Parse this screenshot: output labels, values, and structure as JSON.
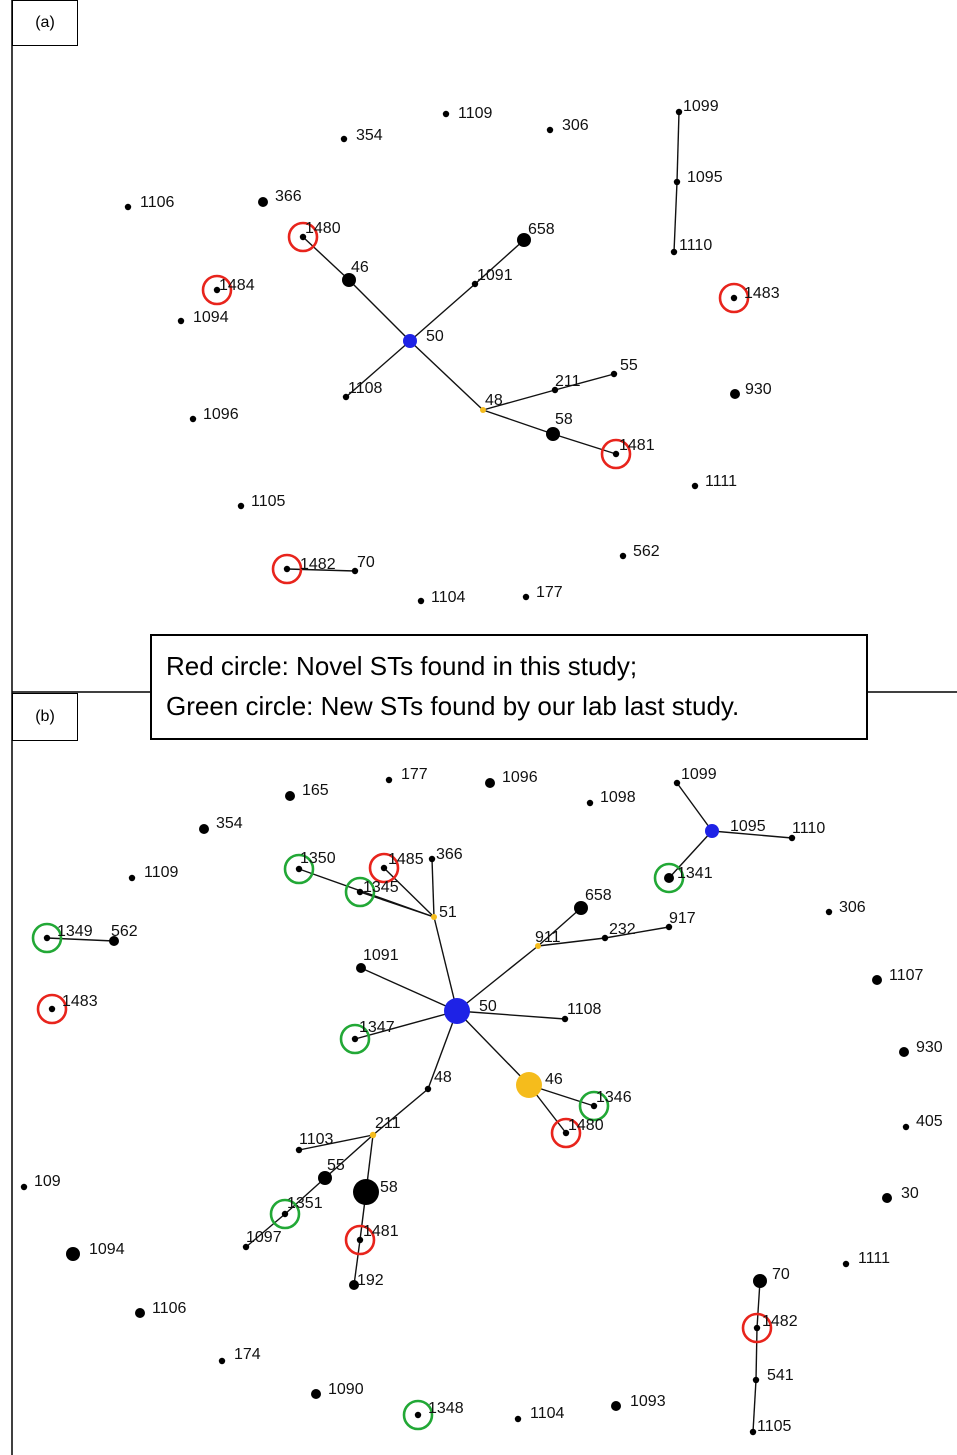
{
  "colors": {
    "founder_blue": "#1e22e6",
    "subfounder_yellow": "#f5bc1c",
    "node_black": "#000000",
    "novel_red": "#e8241c",
    "new_green": "#22a836"
  },
  "legend": {
    "red": "Red circle: Novel STs found in this study;",
    "green": "Green circle: New STs found by our lab last study."
  },
  "panels": [
    {
      "id": "a",
      "label": "(a)",
      "nodes": [
        {
          "label": "1109",
          "kind": "black",
          "size": "sm"
        },
        {
          "label": "354",
          "kind": "black",
          "size": "sm"
        },
        {
          "label": "306",
          "kind": "black",
          "size": "sm"
        },
        {
          "label": "1099",
          "kind": "black",
          "size": "sm"
        },
        {
          "label": "1095",
          "kind": "black",
          "size": "sm"
        },
        {
          "label": "1110",
          "kind": "black",
          "size": "sm"
        },
        {
          "label": "1106",
          "kind": "black",
          "size": "sm"
        },
        {
          "label": "366",
          "kind": "black",
          "size": "md"
        },
        {
          "label": "1480",
          "kind": "black",
          "size": "sm",
          "ring": "red"
        },
        {
          "label": "658",
          "kind": "black",
          "size": "lg"
        },
        {
          "label": "46",
          "kind": "black",
          "size": "lg"
        },
        {
          "label": "1091",
          "kind": "black",
          "size": "sm"
        },
        {
          "label": "1484",
          "kind": "black",
          "size": "sm",
          "ring": "red"
        },
        {
          "label": "1094",
          "kind": "black",
          "size": "sm"
        },
        {
          "label": "1483",
          "kind": "black",
          "size": "sm",
          "ring": "red"
        },
        {
          "label": "50",
          "kind": "blue",
          "size": "lg"
        },
        {
          "label": "55",
          "kind": "black",
          "size": "sm"
        },
        {
          "label": "211",
          "kind": "black",
          "size": "sm"
        },
        {
          "label": "1108",
          "kind": "black",
          "size": "sm"
        },
        {
          "label": "930",
          "kind": "black",
          "size": "md"
        },
        {
          "label": "48",
          "kind": "yellow",
          "size": "xs"
        },
        {
          "label": "1096",
          "kind": "black",
          "size": "sm"
        },
        {
          "label": "58",
          "kind": "black",
          "size": "lg"
        },
        {
          "label": "1481",
          "kind": "black",
          "size": "sm",
          "ring": "red"
        },
        {
          "label": "1111",
          "kind": "black",
          "size": "sm"
        },
        {
          "label": "1105",
          "kind": "black",
          "size": "sm"
        },
        {
          "label": "562",
          "kind": "black",
          "size": "sm"
        },
        {
          "label": "1482",
          "kind": "black",
          "size": "sm",
          "ring": "red"
        },
        {
          "label": "70",
          "kind": "black",
          "size": "sm"
        },
        {
          "label": "1104",
          "kind": "black",
          "size": "sm"
        },
        {
          "label": "177",
          "kind": "black",
          "size": "sm"
        }
      ],
      "edges": [
        [
          "1099",
          "1095"
        ],
        [
          "1095",
          "1110"
        ],
        [
          "1480",
          "46"
        ],
        [
          "46",
          "50"
        ],
        [
          "50",
          "1091"
        ],
        [
          "1091",
          "658"
        ],
        [
          "50",
          "1108"
        ],
        [
          "50",
          "48"
        ],
        [
          "48",
          "211"
        ],
        [
          "211",
          "55"
        ],
        [
          "48",
          "58"
        ],
        [
          "58",
          "1481"
        ],
        [
          "1482",
          "70"
        ]
      ]
    },
    {
      "id": "b",
      "label": "(b)",
      "nodes": [
        {
          "label": "1099",
          "kind": "black",
          "size": "sm"
        },
        {
          "label": "177",
          "kind": "black",
          "size": "sm"
        },
        {
          "label": "1096",
          "kind": "black",
          "size": "md"
        },
        {
          "label": "165",
          "kind": "black",
          "size": "md"
        },
        {
          "label": "1098",
          "kind": "black",
          "size": "sm"
        },
        {
          "label": "354",
          "kind": "black",
          "size": "md"
        },
        {
          "label": "1095",
          "kind": "blue",
          "size": "lg"
        },
        {
          "label": "1110",
          "kind": "black",
          "size": "sm"
        },
        {
          "label": "1350",
          "kind": "black",
          "size": "sm",
          "ring": "green"
        },
        {
          "label": "1485",
          "kind": "black",
          "size": "sm",
          "ring": "red"
        },
        {
          "label": "366",
          "kind": "black",
          "size": "sm"
        },
        {
          "label": "1109",
          "kind": "black",
          "size": "sm"
        },
        {
          "label": "1345",
          "kind": "black",
          "size": "sm",
          "ring": "green"
        },
        {
          "label": "1341",
          "kind": "black",
          "size": "md",
          "ring": "green"
        },
        {
          "label": "658",
          "kind": "black",
          "size": "lg"
        },
        {
          "label": "306",
          "kind": "black",
          "size": "sm"
        },
        {
          "label": "51",
          "kind": "yellow",
          "size": "xs"
        },
        {
          "label": "917",
          "kind": "black",
          "size": "sm"
        },
        {
          "label": "232",
          "kind": "black",
          "size": "sm"
        },
        {
          "label": "911",
          "kind": "yellow",
          "size": "xs"
        },
        {
          "label": "1349",
          "kind": "black",
          "size": "sm",
          "ring": "green"
        },
        {
          "label": "562",
          "kind": "black",
          "size": "md"
        },
        {
          "label": "1091",
          "kind": "black",
          "size": "md"
        },
        {
          "label": "1107",
          "kind": "black",
          "size": "md"
        },
        {
          "label": "1483",
          "kind": "black",
          "size": "sm",
          "ring": "red"
        },
        {
          "label": "50",
          "kind": "blue",
          "size": "xl"
        },
        {
          "label": "1108",
          "kind": "black",
          "size": "sm"
        },
        {
          "label": "1347",
          "kind": "black",
          "size": "sm",
          "ring": "green"
        },
        {
          "label": "930",
          "kind": "black",
          "size": "md"
        },
        {
          "label": "46",
          "kind": "yellow",
          "size": "xl"
        },
        {
          "label": "48",
          "kind": "black",
          "size": "sm"
        },
        {
          "label": "1346",
          "kind": "black",
          "size": "sm",
          "ring": "green"
        },
        {
          "label": "405",
          "kind": "black",
          "size": "sm"
        },
        {
          "label": "211",
          "kind": "yellow",
          "size": "sm"
        },
        {
          "label": "1480",
          "kind": "black",
          "size": "sm",
          "ring": "red"
        },
        {
          "label": "1103",
          "kind": "black",
          "size": "sm"
        },
        {
          "label": "109",
          "kind": "black",
          "size": "sm"
        },
        {
          "label": "55",
          "kind": "black",
          "size": "lg"
        },
        {
          "label": "58",
          "kind": "black",
          "size": "xl"
        },
        {
          "label": "30",
          "kind": "black",
          "size": "md"
        },
        {
          "label": "1351",
          "kind": "black",
          "size": "sm",
          "ring": "green"
        },
        {
          "label": "1481",
          "kind": "black",
          "size": "sm",
          "ring": "red"
        },
        {
          "label": "1097",
          "kind": "black",
          "size": "sm"
        },
        {
          "label": "1094",
          "kind": "black",
          "size": "lg"
        },
        {
          "label": "1111",
          "kind": "black",
          "size": "sm"
        },
        {
          "label": "70",
          "kind": "black",
          "size": "lg"
        },
        {
          "label": "192",
          "kind": "black",
          "size": "md"
        },
        {
          "label": "1106",
          "kind": "black",
          "size": "md"
        },
        {
          "label": "1482",
          "kind": "black",
          "size": "sm",
          "ring": "red"
        },
        {
          "label": "174",
          "kind": "black",
          "size": "sm"
        },
        {
          "label": "541",
          "kind": "black",
          "size": "sm"
        },
        {
          "label": "1090",
          "kind": "black",
          "size": "md"
        },
        {
          "label": "1348",
          "kind": "black",
          "size": "sm",
          "ring": "green"
        },
        {
          "label": "1104",
          "kind": "black",
          "size": "sm"
        },
        {
          "label": "1093",
          "kind": "black",
          "size": "md"
        },
        {
          "label": "1105",
          "kind": "black",
          "size": "sm"
        }
      ],
      "edges": [
        [
          "1099",
          "1095"
        ],
        [
          "1095",
          "1110"
        ],
        [
          "1095",
          "1341"
        ],
        [
          "1350",
          "51"
        ],
        [
          "1345",
          "51"
        ],
        [
          "1485",
          "51"
        ],
        [
          "366",
          "51"
        ],
        [
          "51",
          "50"
        ],
        [
          "50",
          "911"
        ],
        [
          "911",
          "658"
        ],
        [
          "911",
          "232"
        ],
        [
          "232",
          "917"
        ],
        [
          "1349",
          "562"
        ],
        [
          "1091",
          "50"
        ],
        [
          "50",
          "1108"
        ],
        [
          "1347",
          "50"
        ],
        [
          "50",
          "46"
        ],
        [
          "46",
          "1346"
        ],
        [
          "46",
          "1480"
        ],
        [
          "50",
          "48"
        ],
        [
          "48",
          "211"
        ],
        [
          "211",
          "1103"
        ],
        [
          "211",
          "55"
        ],
        [
          "55",
          "1351"
        ],
        [
          "1351",
          "1097"
        ],
        [
          "211",
          "58"
        ],
        [
          "58",
          "1481"
        ],
        [
          "1481",
          "192"
        ],
        [
          "70",
          "1482"
        ],
        [
          "1482",
          "541"
        ],
        [
          "541",
          "1105"
        ]
      ]
    }
  ]
}
